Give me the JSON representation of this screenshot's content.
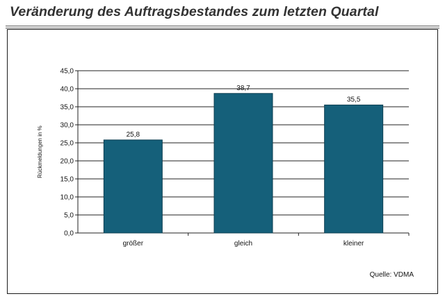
{
  "title": "Veränderung des Auftragsbestandes zum letzten Quartal",
  "source": "Quelle: VDMA",
  "colors": {
    "bar": "#15607a",
    "bar_stroke": "#0d3f52",
    "grid": "#222222"
  },
  "chart_data": {
    "type": "bar",
    "title": "Veränderung des Auftragsbestandes zum letzten Quartal",
    "categories": [
      "größer",
      "gleich",
      "kleiner"
    ],
    "values": [
      25.8,
      38.7,
      35.5
    ],
    "value_labels": [
      "25,8",
      "38,7",
      "35,5"
    ],
    "ylabel": "Rückmeldungen in %",
    "xlabel": "",
    "ylim": [
      0,
      45
    ],
    "yticks": [
      0,
      5,
      10,
      15,
      20,
      25,
      30,
      35,
      40,
      45
    ],
    "ytick_labels": [
      "0,0",
      "5,0",
      "10,0",
      "15,0",
      "20,0",
      "25,0",
      "30,0",
      "35,0",
      "40,0",
      "45,0"
    ],
    "grid": true,
    "legend": "none"
  }
}
